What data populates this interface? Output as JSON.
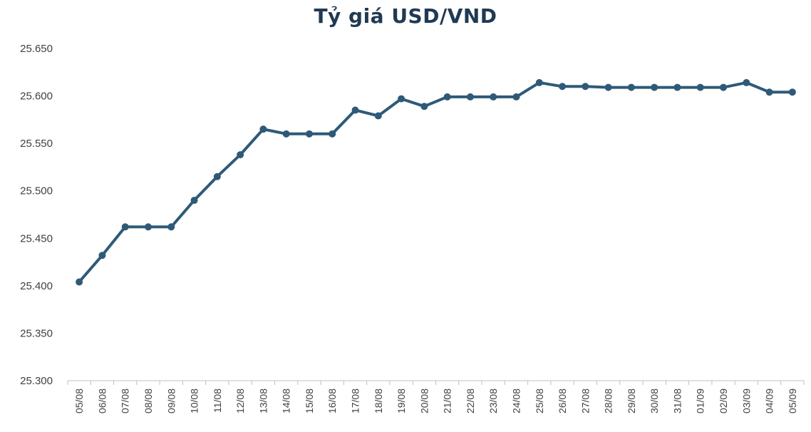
{
  "chart_data": {
    "type": "line",
    "title": "Tỷ giá USD/VND",
    "xlabel": "",
    "ylabel": "",
    "ylim": [
      25300,
      25650
    ],
    "y_tick_labels": [
      "25.300",
      "25.350",
      "25.400",
      "25.450",
      "25.500",
      "25.550",
      "25.600",
      "25.650"
    ],
    "grid": false,
    "legend": "none",
    "categories": [
      "05/08",
      "06/08",
      "07/08",
      "08/08",
      "09/08",
      "10/08",
      "11/08",
      "12/08",
      "13/08",
      "14/08",
      "15/08",
      "16/08",
      "17/08",
      "18/08",
      "19/08",
      "20/08",
      "21/08",
      "22/08",
      "23/08",
      "24/08",
      "25/08",
      "26/08",
      "27/08",
      "28/08",
      "29/08",
      "30/08",
      "31/08",
      "01/09",
      "02/09",
      "03/09",
      "04/09",
      "05/09"
    ],
    "series": [
      {
        "values": [
          25404,
          25432,
          25462,
          25462,
          25462,
          25490,
          25515,
          25538,
          25565,
          25560,
          25560,
          25560,
          25585,
          25579,
          25597,
          25589,
          25599,
          25599,
          25599,
          25599,
          25614,
          25610,
          25610,
          25609,
          25609,
          25609,
          25609,
          25609,
          25609,
          25614,
          25604,
          25604
        ],
        "color": "#2e5a78"
      }
    ],
    "axis_color": "#bfbfbf"
  }
}
